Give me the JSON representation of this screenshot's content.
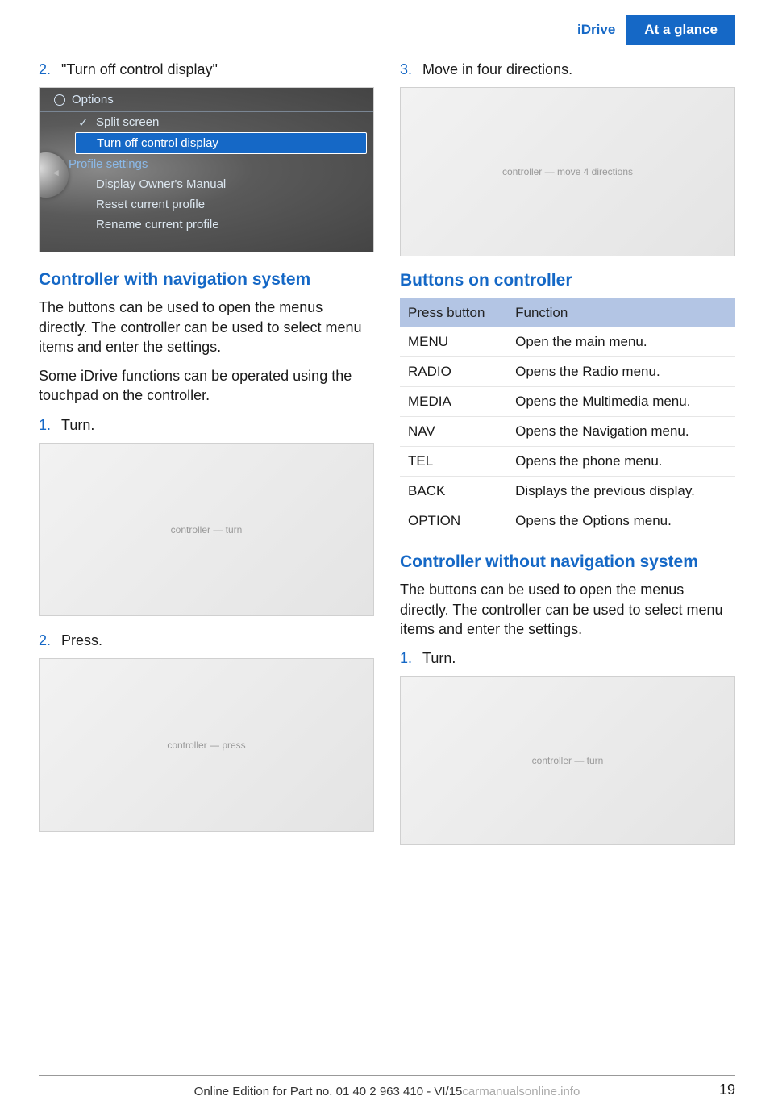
{
  "header": {
    "tab1": "iDrive",
    "tab2": "At a glance",
    "tab1_color": "#1568c6",
    "tab2_bg": "#1568c6"
  },
  "left": {
    "step2_num": "2.",
    "step2_text": "\"Turn off control display\"",
    "menu": {
      "title": "Options",
      "item1": "Split screen",
      "item2_selected": "Turn off control display",
      "section": "Profile settings",
      "item3": "Display Owner's Manual",
      "item4": "Reset current profile",
      "item5": "Rename current profile"
    },
    "h_nav": "Controller with navigation system",
    "p1": "The buttons can be used to open the menus directly. The controller can be used to select menu items and enter the settings.",
    "p2": "Some iDrive functions can be operated using the touchpad on the controller.",
    "s1_num": "1.",
    "s1_text": "Turn.",
    "s2_num": "2.",
    "s2_text": "Press."
  },
  "right": {
    "step3_num": "3.",
    "step3_text": "Move in four directions.",
    "h_buttons": "Buttons on controller",
    "table": {
      "header_bg": "#b3c5e4",
      "col1": "Press button",
      "col2": "Function",
      "rows": [
        [
          "MENU",
          "Open the main menu."
        ],
        [
          "RADIO",
          "Opens the Radio menu."
        ],
        [
          "MEDIA",
          "Opens the Multimedia menu."
        ],
        [
          "NAV",
          "Opens the Navigation menu."
        ],
        [
          "TEL",
          "Opens the phone menu."
        ],
        [
          "BACK",
          "Displays the previous display."
        ],
        [
          "OPTION",
          "Opens the Options menu."
        ]
      ]
    },
    "h_nonav": "Controller without navigation system",
    "p_nonav": "The buttons can be used to open the menus directly. The controller can be used to select menu items and enter the settings.",
    "s1_num": "1.",
    "s1_text": "Turn."
  },
  "footer": {
    "text": "Online Edition for Part no. 01 40 2 963 410 - VI/15",
    "watermark": "carmanualsonline.info",
    "page": "19"
  },
  "images": {
    "turn_h": 215,
    "press_h": 215,
    "move_h": 210,
    "turn2_h": 210
  }
}
